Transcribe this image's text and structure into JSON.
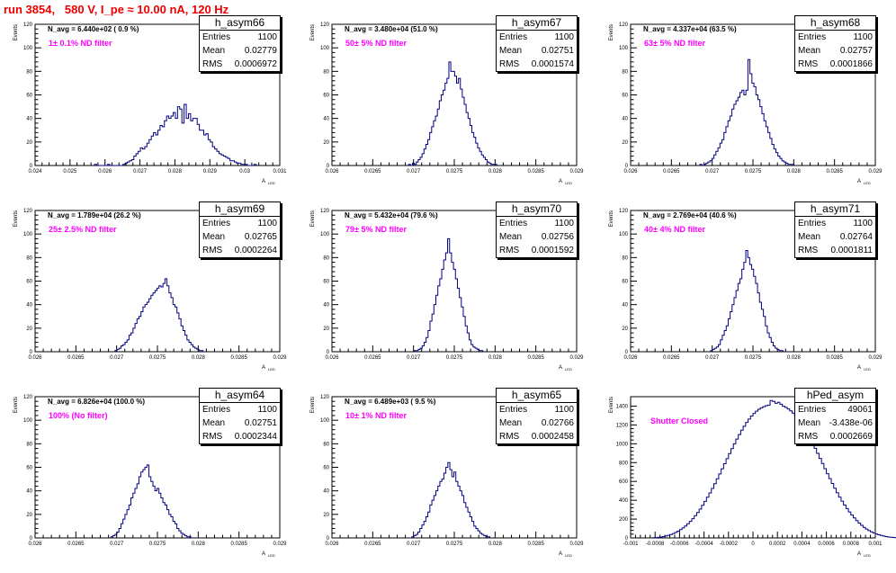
{
  "page": {
    "title": "run 3854,   580 V, I_pe ≈ 10.00 nA, 120 Hz"
  },
  "common": {
    "ylabel": "Events",
    "xlabel": "A",
    "xlabel_sub": "LED",
    "entries_label": "Entries",
    "mean_label": "Mean",
    "rms_label": "RMS"
  },
  "colors": {
    "histogram": "#000080",
    "annotation": "#ff00ff",
    "title": "#ee0000"
  },
  "chart_data": [
    {
      "type": "histogram",
      "name": "h_asym66",
      "n_avg_text": "N_avg = 6.440e+02 ( 0.9 %)",
      "filter_text": "1± 0.1% ND filter",
      "entries": "1100",
      "mean": "0.02779",
      "rms": "0.0006972",
      "xlim": [
        0.024,
        0.031
      ],
      "ylim": [
        0,
        120
      ],
      "xticks": [
        "0.024",
        "0.025",
        "0.026",
        "0.027",
        "0.028",
        "0.029",
        "0.03",
        "0.031"
      ],
      "yticks": [
        "0",
        "20",
        "40",
        "60",
        "80",
        "100",
        "120"
      ],
      "x_start": 0.0257,
      "bin_width": 6.25e-05,
      "values": [
        1,
        0,
        0,
        0,
        0,
        0,
        1,
        0,
        0,
        0,
        0,
        0,
        0,
        1,
        2,
        3,
        4,
        5,
        8,
        10,
        12,
        15,
        14,
        16,
        19,
        22,
        25,
        28,
        26,
        30,
        34,
        33,
        38,
        42,
        40,
        42,
        45,
        40,
        50,
        48,
        36,
        52,
        40,
        44,
        38,
        40,
        40,
        35,
        30,
        30,
        26,
        27,
        22,
        20,
        16,
        14,
        12,
        10,
        9,
        8,
        7,
        6,
        4,
        4,
        3,
        2,
        2,
        1,
        1,
        1,
        0,
        0,
        0,
        1
      ]
    },
    {
      "type": "histogram",
      "name": "h_asym67",
      "n_avg_text": "N_avg = 3.480e+04 (51.0 %)",
      "filter_text": "50± 5% ND filter",
      "entries": "1100",
      "mean": "0.02751",
      "rms": "0.0001574",
      "xlim": [
        0.026,
        0.029
      ],
      "ylim": [
        0,
        120
      ],
      "xticks": [
        "0.026",
        "0.0265",
        "0.027",
        "0.0275",
        "0.028",
        "0.0285",
        "0.029"
      ],
      "yticks": [
        "0",
        "20",
        "40",
        "60",
        "80",
        "100",
        "120"
      ],
      "x_start": 0.02694,
      "bin_width": 2.35e-05,
      "values": [
        1,
        0,
        2,
        1,
        3,
        5,
        7,
        10,
        14,
        18,
        22,
        28,
        33,
        38,
        42,
        48,
        55,
        60,
        64,
        70,
        74,
        88,
        80,
        80,
        76,
        70,
        74,
        65,
        58,
        52,
        45,
        40,
        34,
        28,
        24,
        19,
        15,
        12,
        9,
        7,
        5,
        3,
        2,
        1,
        1,
        1
      ]
    },
    {
      "type": "histogram",
      "name": "h_asym68",
      "n_avg_text": "N_avg = 4.337e+04 (63.5 %)",
      "filter_text": "63± 5% ND filter",
      "entries": "1100",
      "mean": "0.02757",
      "rms": "0.0001866",
      "xlim": [
        0.026,
        0.029
      ],
      "ylim": [
        0,
        120
      ],
      "xticks": [
        "0.026",
        "0.0265",
        "0.027",
        "0.0275",
        "0.028",
        "0.0285",
        "0.029"
      ],
      "yticks": [
        "0",
        "20",
        "40",
        "60",
        "80",
        "100",
        "120"
      ],
      "x_start": 0.02685,
      "bin_width": 2.45e-05,
      "values": [
        1,
        0,
        1,
        2,
        3,
        4,
        6,
        9,
        12,
        15,
        19,
        22,
        28,
        33,
        38,
        42,
        48,
        52,
        55,
        58,
        62,
        64,
        60,
        64,
        90,
        78,
        70,
        67,
        60,
        56,
        50,
        44,
        38,
        33,
        28,
        23,
        18,
        14,
        11,
        8,
        6,
        4,
        3,
        2,
        1,
        1,
        1
      ]
    },
    {
      "type": "histogram",
      "name": "h_asym69",
      "n_avg_text": "N_avg = 1.789e+04 (26.2 %)",
      "filter_text": "25± 2.5% ND filter",
      "entries": "1100",
      "mean": "0.02765",
      "rms": "0.0002264",
      "xlim": [
        0.026,
        0.029
      ],
      "ylim": [
        0,
        120
      ],
      "xticks": [
        "0.026",
        "0.0265",
        "0.027",
        "0.0275",
        "0.028",
        "0.0285",
        "0.029"
      ],
      "yticks": [
        "0",
        "20",
        "40",
        "60",
        "80",
        "100",
        "120"
      ],
      "x_start": 0.02698,
      "bin_width": 2.45e-05,
      "values": [
        1,
        2,
        3,
        5,
        6,
        8,
        10,
        14,
        16,
        20,
        24,
        28,
        30,
        34,
        38,
        40,
        42,
        45,
        48,
        50,
        52,
        54,
        56,
        55,
        58,
        62,
        56,
        50,
        46,
        40,
        38,
        33,
        28,
        22,
        18,
        14,
        10,
        8,
        6,
        4,
        3,
        2,
        1,
        1
      ]
    },
    {
      "type": "histogram",
      "name": "h_asym70",
      "n_avg_text": "N_avg = 5.432e+04 (79.6 %)",
      "filter_text": "79± 5% ND filter",
      "entries": "1100",
      "mean": "0.02756",
      "rms": "0.0001592",
      "xlim": [
        0.026,
        0.029
      ],
      "ylim": [
        0,
        120
      ],
      "xticks": [
        "0.026",
        "0.0265",
        "0.027",
        "0.0275",
        "0.028",
        "0.0285",
        "0.029"
      ],
      "yticks": [
        "0",
        "20",
        "40",
        "60",
        "80",
        "100",
        "120"
      ],
      "x_start": 0.02701,
      "bin_width": 2.4e-05,
      "values": [
        1,
        1,
        2,
        3,
        5,
        8,
        12,
        18,
        26,
        32,
        40,
        48,
        56,
        62,
        70,
        78,
        84,
        96,
        84,
        76,
        70,
        62,
        54,
        46,
        38,
        30,
        22,
        16,
        10,
        6,
        4,
        3,
        2,
        1,
        1
      ]
    },
    {
      "type": "histogram",
      "name": "h_asym71",
      "n_avg_text": "N_avg = 2.769e+04 (40.6 %)",
      "filter_text": "40± 4% ND filter",
      "entries": "1100",
      "mean": "0.02764",
      "rms": "0.0001811",
      "xlim": [
        0.026,
        0.029
      ],
      "ylim": [
        0,
        120
      ],
      "xticks": [
        "0.026",
        "0.0265",
        "0.027",
        "0.0275",
        "0.028",
        "0.0285",
        "0.029"
      ],
      "yticks": [
        "0",
        "20",
        "40",
        "60",
        "80",
        "100",
        "120"
      ],
      "x_start": 0.02698,
      "bin_width": 2.4e-05,
      "values": [
        1,
        2,
        3,
        4,
        6,
        10,
        14,
        18,
        22,
        28,
        34,
        40,
        46,
        52,
        58,
        62,
        70,
        76,
        86,
        80,
        74,
        70,
        64,
        58,
        50,
        42,
        36,
        30,
        22,
        16,
        12,
        8,
        5,
        3,
        2,
        1,
        1
      ]
    },
    {
      "type": "histogram",
      "name": "h_asym64",
      "n_avg_text": "N_avg = 6.826e+04 (100.0 %)",
      "filter_text": "100% (No filter)",
      "entries": "1100",
      "mean": "0.02751",
      "rms": "0.0002344",
      "xlim": [
        0.026,
        0.029
      ],
      "ylim": [
        0,
        120
      ],
      "xticks": [
        "0.026",
        "0.0265",
        "0.027",
        "0.0275",
        "0.028",
        "0.0285",
        "0.029"
      ],
      "yticks": [
        "0",
        "20",
        "40",
        "60",
        "80",
        "100",
        "120"
      ],
      "x_start": 0.02693,
      "bin_width": 2.45e-05,
      "values": [
        1,
        2,
        3,
        5,
        8,
        12,
        16,
        20,
        24,
        28,
        34,
        38,
        42,
        46,
        52,
        56,
        58,
        60,
        62,
        52,
        48,
        44,
        40,
        42,
        38,
        34,
        30,
        28,
        24,
        20,
        18,
        14,
        12,
        8,
        6,
        4,
        3,
        2,
        1,
        1
      ]
    },
    {
      "type": "histogram",
      "name": "h_asym65",
      "n_avg_text": "N_avg = 6.489e+03 ( 9.5 %)",
      "filter_text": "10± 1% ND filter",
      "entries": "1100",
      "mean": "0.02766",
      "rms": "0.0002458",
      "xlim": [
        0.026,
        0.029
      ],
      "ylim": [
        0,
        120
      ],
      "xticks": [
        "0.026",
        "0.0265",
        "0.027",
        "0.0275",
        "0.028",
        "0.0285",
        "0.029"
      ],
      "yticks": [
        "0",
        "20",
        "40",
        "60",
        "80",
        "100",
        "120"
      ],
      "x_start": 0.02698,
      "bin_width": 2.45e-05,
      "values": [
        1,
        2,
        3,
        5,
        8,
        11,
        14,
        18,
        22,
        28,
        32,
        36,
        40,
        44,
        48,
        50,
        55,
        60,
        64,
        58,
        52,
        56,
        48,
        44,
        40,
        36,
        30,
        26,
        22,
        18,
        14,
        10,
        8,
        6,
        4,
        3,
        2,
        1,
        1
      ]
    },
    {
      "type": "histogram",
      "name": "hPed_asym",
      "n_avg_text": "",
      "filter_text": "Shutter Closed",
      "entries": "49061",
      "mean": "-3.438e-06",
      "rms": "0.0002669",
      "xlim": [
        -0.001,
        0.001
      ],
      "ylim": [
        0,
        1500
      ],
      "xticks": [
        "-0.001",
        "-0.0008",
        "-0.0006",
        "-0.0004",
        "-0.0002",
        "0",
        "0.0002",
        "0.0004",
        "0.0006",
        "0.0008",
        "0.001"
      ],
      "yticks": [
        "0",
        "200",
        "400",
        "600",
        "800",
        "1000",
        "1200",
        "1400"
      ],
      "x_start": -0.00082,
      "bin_width": 2e-05,
      "values": [
        2,
        4,
        6,
        10,
        14,
        20,
        28,
        36,
        46,
        58,
        72,
        88,
        106,
        126,
        150,
        176,
        204,
        236,
        270,
        306,
        346,
        388,
        432,
        478,
        526,
        576,
        628,
        680,
        734,
        788,
        842,
        896,
        948,
        1000,
        1050,
        1098,
        1144,
        1186,
        1226,
        1262,
        1294,
        1322,
        1346,
        1366,
        1382,
        1394,
        1404,
        1410,
        1460,
        1450,
        1430,
        1440,
        1420,
        1398,
        1386,
        1370,
        1350,
        1326,
        1298,
        1266,
        1230,
        1190,
        1148,
        1102,
        1054,
        1004,
        952,
        898,
        844,
        790,
        736,
        682,
        630,
        578,
        528,
        480,
        434,
        390,
        350,
        312,
        276,
        242,
        212,
        184,
        158,
        134,
        112,
        94,
        78,
        64,
        52,
        42,
        34,
        26,
        20,
        14,
        10,
        7,
        5,
        3,
        2,
        1
      ]
    }
  ]
}
